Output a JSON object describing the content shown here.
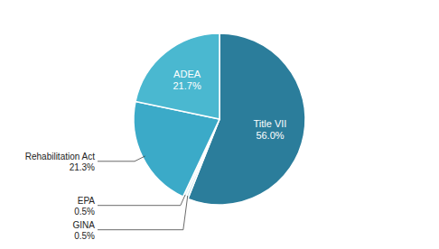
{
  "chart_data": {
    "type": "pie",
    "categories": [
      "Title VII",
      "GINA",
      "EPA",
      "Rehabilitation Act",
      "ADEA"
    ],
    "values": [
      56.0,
      0.5,
      0.5,
      21.3,
      21.7
    ],
    "value_labels": [
      "56.0%",
      "0.5%",
      "0.5%",
      "21.3%",
      "21.7%"
    ],
    "colors": [
      "#2B7D9B",
      "#C8E8EF",
      "#E0F2F6",
      "#3BAAC8",
      "#4AB8D0"
    ],
    "data_labels": true
  }
}
